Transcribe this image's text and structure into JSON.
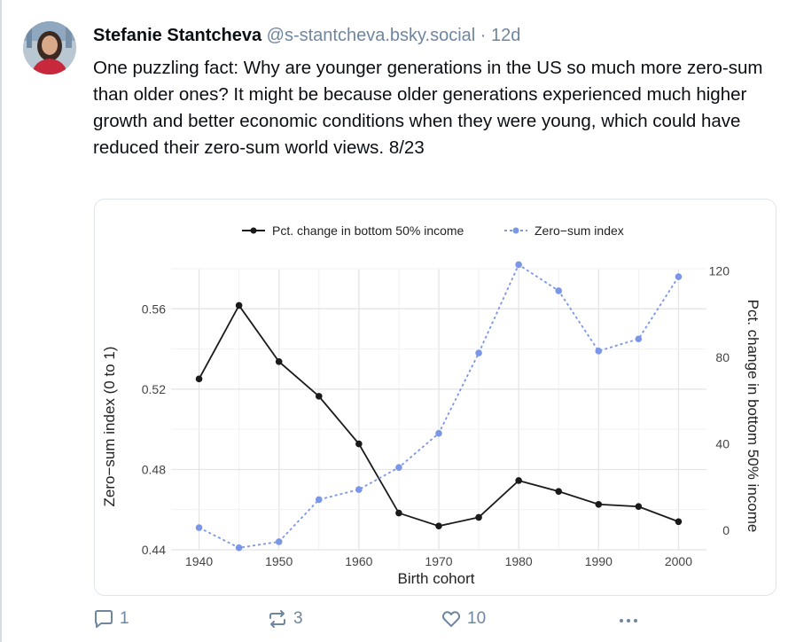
{
  "post": {
    "author_name": "Stefanie Stantcheva",
    "author_handle": "@s-stantcheva.bsky.social",
    "separator": "·",
    "time_ago": "12d",
    "text": "One puzzling fact: Why are younger generations in the US so much more zero-sum than older ones? It might be because older generations experienced much higher growth and better economic conditions when they were young, which could have reduced their zero-sum world views. 8/23"
  },
  "actions": {
    "reply_count": "1",
    "repost_count": "3",
    "like_count": "10",
    "more_label": "•••"
  },
  "icons": {
    "reply": "reply-icon",
    "repost": "repost-icon",
    "like": "heart-icon",
    "more": "more-options-icon"
  },
  "colors": {
    "text": "#0b0f14",
    "muted": "#6f869f",
    "series_income": "#1a1a1a",
    "series_zero_sum": "#7b96e6"
  },
  "chart_data": {
    "type": "line",
    "title": "",
    "xlabel": "Birth cohort",
    "ylabel_left": "Zero−sum index (0 to 1)",
    "ylabel_right": "Pct. change in bottom 50% income",
    "legend_position": "top",
    "grid": true,
    "x": [
      1940,
      1945,
      1950,
      1955,
      1960,
      1965,
      1970,
      1975,
      1980,
      1985,
      1990,
      1995,
      2000
    ],
    "x_ticks": [
      1940,
      1950,
      1960,
      1970,
      1980,
      1990,
      2000
    ],
    "y_left_ticks": [
      "0.44",
      "0.48",
      "0.52",
      "0.56"
    ],
    "y_right_ticks": [
      "0",
      "40",
      "80",
      "120"
    ],
    "ylim_left": [
      0.44,
      0.58
    ],
    "ylim_right": [
      -9,
      121
    ],
    "series": [
      {
        "name": "Pct. change in bottom 50% income",
        "axis": "right",
        "style": "solid",
        "values": [
          70,
          104,
          78,
          62,
          40,
          8,
          2,
          6,
          23,
          18,
          12,
          11,
          4
        ]
      },
      {
        "name": "Zero−sum index",
        "axis": "left",
        "style": "dashed",
        "values": [
          0.451,
          0.441,
          0.444,
          0.465,
          0.47,
          0.481,
          0.498,
          0.538,
          0.582,
          0.569,
          0.539,
          0.545,
          0.576
        ]
      }
    ]
  }
}
